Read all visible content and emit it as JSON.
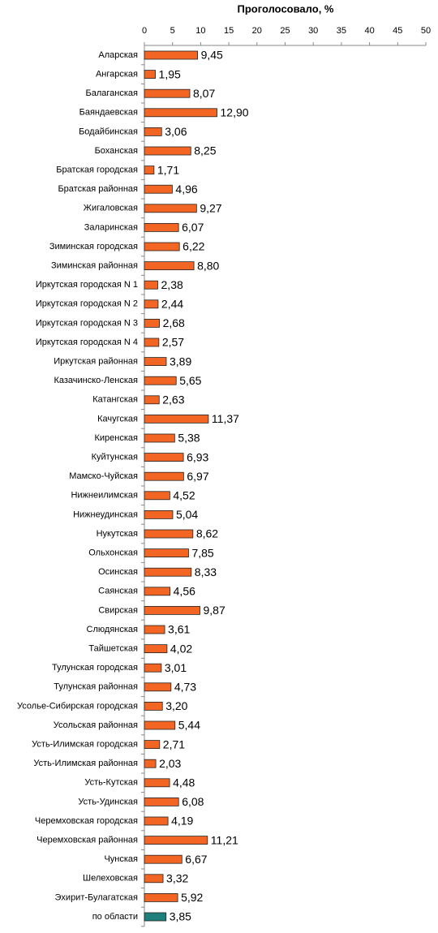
{
  "chart_data": {
    "type": "bar",
    "orientation": "horizontal",
    "title": "Проголосовало, %",
    "categories": [
      "Аларская",
      "Ангарская",
      "Балаганская",
      "Баяндаевская",
      "Бодайбинская",
      "Боханская",
      "Братская городская",
      "Братская районная",
      "Жигаловская",
      "Заларинская",
      "Зиминская городская",
      "Зиминская районная",
      "Иркутская городская N 1",
      "Иркутская городская N 2",
      "Иркутская городская N 3",
      "Иркутская городская N 4",
      "Иркутская районная",
      "Казачинско-Ленская",
      "Катангская",
      "Качугская",
      "Киренская",
      "Куйтунская",
      "Мамско-Чуйская",
      "Нижнеилимская",
      "Нижнеудинская",
      "Нукутская",
      "Ольхонская",
      "Осинская",
      "Саянская",
      "Свирская",
      "Слюдянская",
      "Тайшетская",
      "Тулунская городская",
      "Тулунская районная",
      "Усолье-Сибирская городская",
      "Усольская районная",
      "Усть-Илимская городская",
      "Усть-Илимская районная",
      "Усть-Кутская",
      "Усть-Удинская",
      "Черемховская городская",
      "Черемховская районная",
      "Чунская",
      "Шелеховская",
      "Эхирит-Булагатская",
      "по области"
    ],
    "values": [
      9.45,
      1.95,
      8.07,
      12.9,
      3.06,
      8.25,
      1.71,
      4.96,
      9.27,
      6.07,
      6.22,
      8.8,
      2.38,
      2.44,
      2.68,
      2.57,
      3.89,
      5.65,
      2.63,
      11.37,
      5.38,
      6.93,
      6.97,
      4.52,
      5.04,
      8.62,
      7.85,
      8.33,
      4.56,
      9.87,
      3.61,
      4.02,
      3.01,
      4.73,
      3.2,
      5.44,
      2.71,
      2.03,
      4.48,
      6.08,
      4.19,
      11.21,
      6.67,
      3.32,
      5.92,
      3.85
    ],
    "value_labels": [
      "9,45",
      "1,95",
      "8,07",
      "12,90",
      "3,06",
      "8,25",
      "1,71",
      "4,96",
      "9,27",
      "6,07",
      "6,22",
      "8,80",
      "2,38",
      "2,44",
      "2,68",
      "2,57",
      "3,89",
      "5,65",
      "2,63",
      "11,37",
      "5,38",
      "6,93",
      "6,97",
      "4,52",
      "5,04",
      "8,62",
      "7,85",
      "8,33",
      "4,56",
      "9,87",
      "3,61",
      "4,02",
      "3,01",
      "4,73",
      "3,20",
      "5,44",
      "2,71",
      "2,03",
      "4,48",
      "6,08",
      "4,19",
      "11,21",
      "6,67",
      "3,32",
      "5,92",
      "3,85"
    ],
    "colors": [
      "#f26522",
      "#f26522",
      "#f26522",
      "#f26522",
      "#f26522",
      "#f26522",
      "#f26522",
      "#f26522",
      "#f26522",
      "#f26522",
      "#f26522",
      "#f26522",
      "#f26522",
      "#f26522",
      "#f26522",
      "#f26522",
      "#f26522",
      "#f26522",
      "#f26522",
      "#f26522",
      "#f26522",
      "#f26522",
      "#f26522",
      "#f26522",
      "#f26522",
      "#f26522",
      "#f26522",
      "#f26522",
      "#f26522",
      "#f26522",
      "#f26522",
      "#f26522",
      "#f26522",
      "#f26522",
      "#f26522",
      "#f26522",
      "#f26522",
      "#f26522",
      "#f26522",
      "#f26522",
      "#f26522",
      "#f26522",
      "#f26522",
      "#f26522",
      "#f26522",
      "#1f7f7a"
    ],
    "xlim": [
      0,
      50
    ],
    "xticks": [
      0,
      5,
      10,
      15,
      20,
      25,
      30,
      35,
      40,
      45,
      50
    ]
  }
}
